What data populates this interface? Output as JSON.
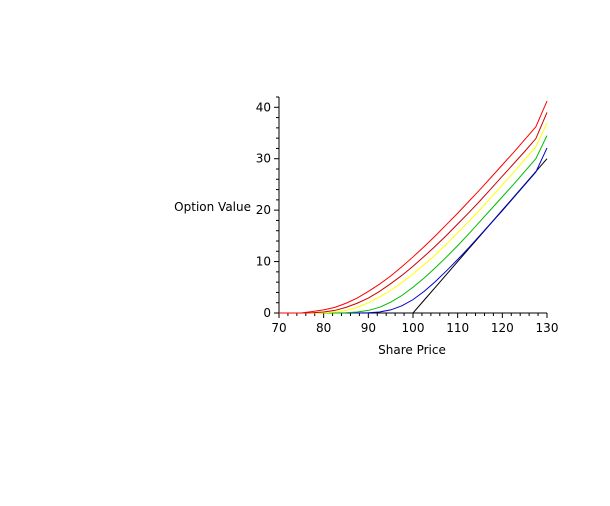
{
  "chart_data": {
    "type": "line",
    "title": "",
    "xlabel": "Share Price",
    "ylabel": "Option Value",
    "xlim": [
      70,
      130
    ],
    "ylim": [
      0,
      42
    ],
    "x_ticks": [
      70,
      80,
      90,
      100,
      110,
      120,
      130
    ],
    "y_ticks": [
      0,
      10,
      20,
      30,
      40
    ],
    "x_tick_labels": [
      "70",
      "80",
      "90",
      "100",
      "110",
      "120",
      "130"
    ],
    "y_tick_labels": [
      "0",
      "10",
      "20",
      "30",
      "40"
    ],
    "grid": false,
    "legend": "none",
    "x": [
      70,
      72.5,
      75,
      77.5,
      80,
      82.5,
      85,
      87.5,
      90,
      92.5,
      95,
      97.5,
      100,
      102.5,
      105,
      107.5,
      110,
      112.5,
      115,
      117.5,
      120,
      122.5,
      125,
      127.5,
      130
    ],
    "series": [
      {
        "color": "#000000",
        "values": [
          0,
          0,
          0,
          0,
          0,
          0,
          0,
          0,
          0,
          0,
          0,
          0,
          0,
          2.5,
          5,
          7.5,
          10,
          12.5,
          15,
          17.5,
          20,
          22.5,
          25,
          27.5,
          30
        ]
      },
      {
        "color": "#0000cc",
        "values": [
          0,
          0,
          0,
          0,
          0,
          0,
          0,
          0,
          0.05,
          0.2,
          0.6,
          1.4,
          2.6,
          4.2,
          6.1,
          8.2,
          10.4,
          12.7,
          15.1,
          17.5,
          19.9,
          22.4,
          24.9,
          27.4,
          32.1
        ]
      },
      {
        "color": "#00bb00",
        "values": [
          0,
          0,
          0,
          0,
          0,
          0,
          0.05,
          0.2,
          0.5,
          1.1,
          2.1,
          3.4,
          5.0,
          6.8,
          8.8,
          10.9,
          13.1,
          15.4,
          17.8,
          20.2,
          22.6,
          25.0,
          27.5,
          30.0,
          34.5
        ]
      },
      {
        "color": "#ffff00",
        "values": [
          0,
          0,
          0,
          0,
          0.05,
          0.2,
          0.5,
          1.1,
          2.0,
          3.1,
          4.4,
          5.9,
          7.6,
          9.4,
          11.3,
          13.4,
          15.6,
          17.8,
          20.1,
          22.5,
          24.9,
          27.3,
          29.8,
          32.3,
          36.9
        ]
      },
      {
        "color": "#cc0000",
        "values": [
          0,
          0,
          0,
          0.05,
          0.2,
          0.5,
          1.1,
          1.9,
          2.9,
          4.2,
          5.7,
          7.3,
          9.1,
          11.0,
          13.0,
          15.1,
          17.3,
          19.5,
          21.8,
          24.2,
          26.6,
          29.0,
          31.4,
          33.9,
          39.0
        ]
      },
      {
        "color": "#ff0000",
        "values": [
          0,
          0,
          0,
          0.3,
          0.6,
          1.1,
          1.9,
          2.9,
          4.2,
          5.6,
          7.2,
          9.0,
          10.9,
          12.9,
          15.0,
          17.2,
          19.4,
          21.7,
          24.0,
          26.4,
          28.8,
          31.2,
          33.7,
          36.2,
          41.2
        ]
      }
    ]
  }
}
